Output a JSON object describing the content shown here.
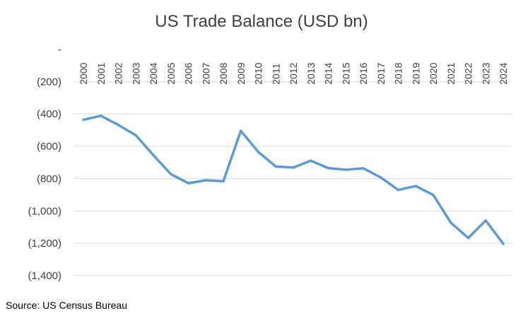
{
  "chart_data": {
    "type": "line",
    "title": "US Trade Balance (USD bn)",
    "xlabel": "",
    "ylabel": "",
    "x": [
      "2000",
      "2001",
      "2002",
      "2003",
      "2004",
      "2005",
      "2006",
      "2007",
      "2008",
      "2009",
      "2010",
      "2011",
      "2012",
      "2013",
      "2014",
      "2015",
      "2016",
      "2017",
      "2018",
      "2019",
      "2020",
      "2021",
      "2022",
      "2023",
      "2024"
    ],
    "series": [
      {
        "values": [
          -436,
          -411,
          -468,
          -532,
          -655,
          -772,
          -828,
          -810,
          -816,
          -504,
          -635,
          -725,
          -731,
          -689,
          -735,
          -745,
          -736,
          -793,
          -870,
          -846,
          -901,
          -1072,
          -1167,
          -1059,
          -1203
        ],
        "color": "#5b9bd5"
      }
    ],
    "ylim": [
      -1400,
      0
    ],
    "yticks": [
      0,
      -200,
      -400,
      -600,
      -800,
      -1000,
      -1200,
      -1400
    ],
    "ytick_labels": [
      "-",
      "(200)",
      "(400)",
      "(600)",
      "(800)",
      "(1,000)",
      "(1,200)",
      "(1,400)"
    ],
    "grid": true,
    "legend": "none"
  },
  "footer": {
    "source": "Source: US Census Bureau"
  }
}
